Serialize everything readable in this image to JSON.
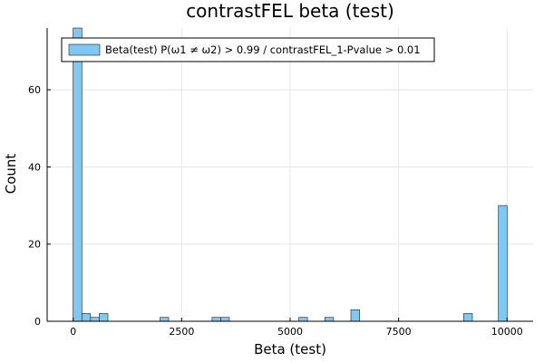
{
  "chart_data": {
    "type": "bar",
    "title": "contrastFEL beta (test)",
    "xlabel": "Beta (test)",
    "ylabel": "Count",
    "xlim": [
      -600,
      10600
    ],
    "ylim": [
      0,
      76
    ],
    "x_ticks": [
      0,
      2500,
      5000,
      7500,
      10000
    ],
    "x_tick_labels": [
      "0",
      "2500",
      "5000",
      "7500",
      "10000"
    ],
    "y_ticks": [
      0,
      20,
      40,
      60
    ],
    "y_tick_labels": [
      "0",
      "20",
      "40",
      "60"
    ],
    "bin_width": 200,
    "grid": true,
    "legend_position": "top-left",
    "series": [
      {
        "name": "Beta(test) P(ω1 ≠ ω2) > 0.99 / contrastFEL_1-Pvalue > 0.01",
        "color": "#7ec8f5",
        "bins": [
          {
            "start": 0,
            "end": 200,
            "count": 76
          },
          {
            "start": 200,
            "end": 400,
            "count": 2
          },
          {
            "start": 400,
            "end": 600,
            "count": 1
          },
          {
            "start": 600,
            "end": 800,
            "count": 2
          },
          {
            "start": 2000,
            "end": 2200,
            "count": 1
          },
          {
            "start": 3200,
            "end": 3400,
            "count": 1
          },
          {
            "start": 3400,
            "end": 3600,
            "count": 1
          },
          {
            "start": 5200,
            "end": 5400,
            "count": 1
          },
          {
            "start": 5800,
            "end": 6000,
            "count": 1
          },
          {
            "start": 6400,
            "end": 6600,
            "count": 3
          },
          {
            "start": 9000,
            "end": 9200,
            "count": 2
          },
          {
            "start": 9800,
            "end": 10000,
            "count": 30
          }
        ]
      }
    ]
  }
}
